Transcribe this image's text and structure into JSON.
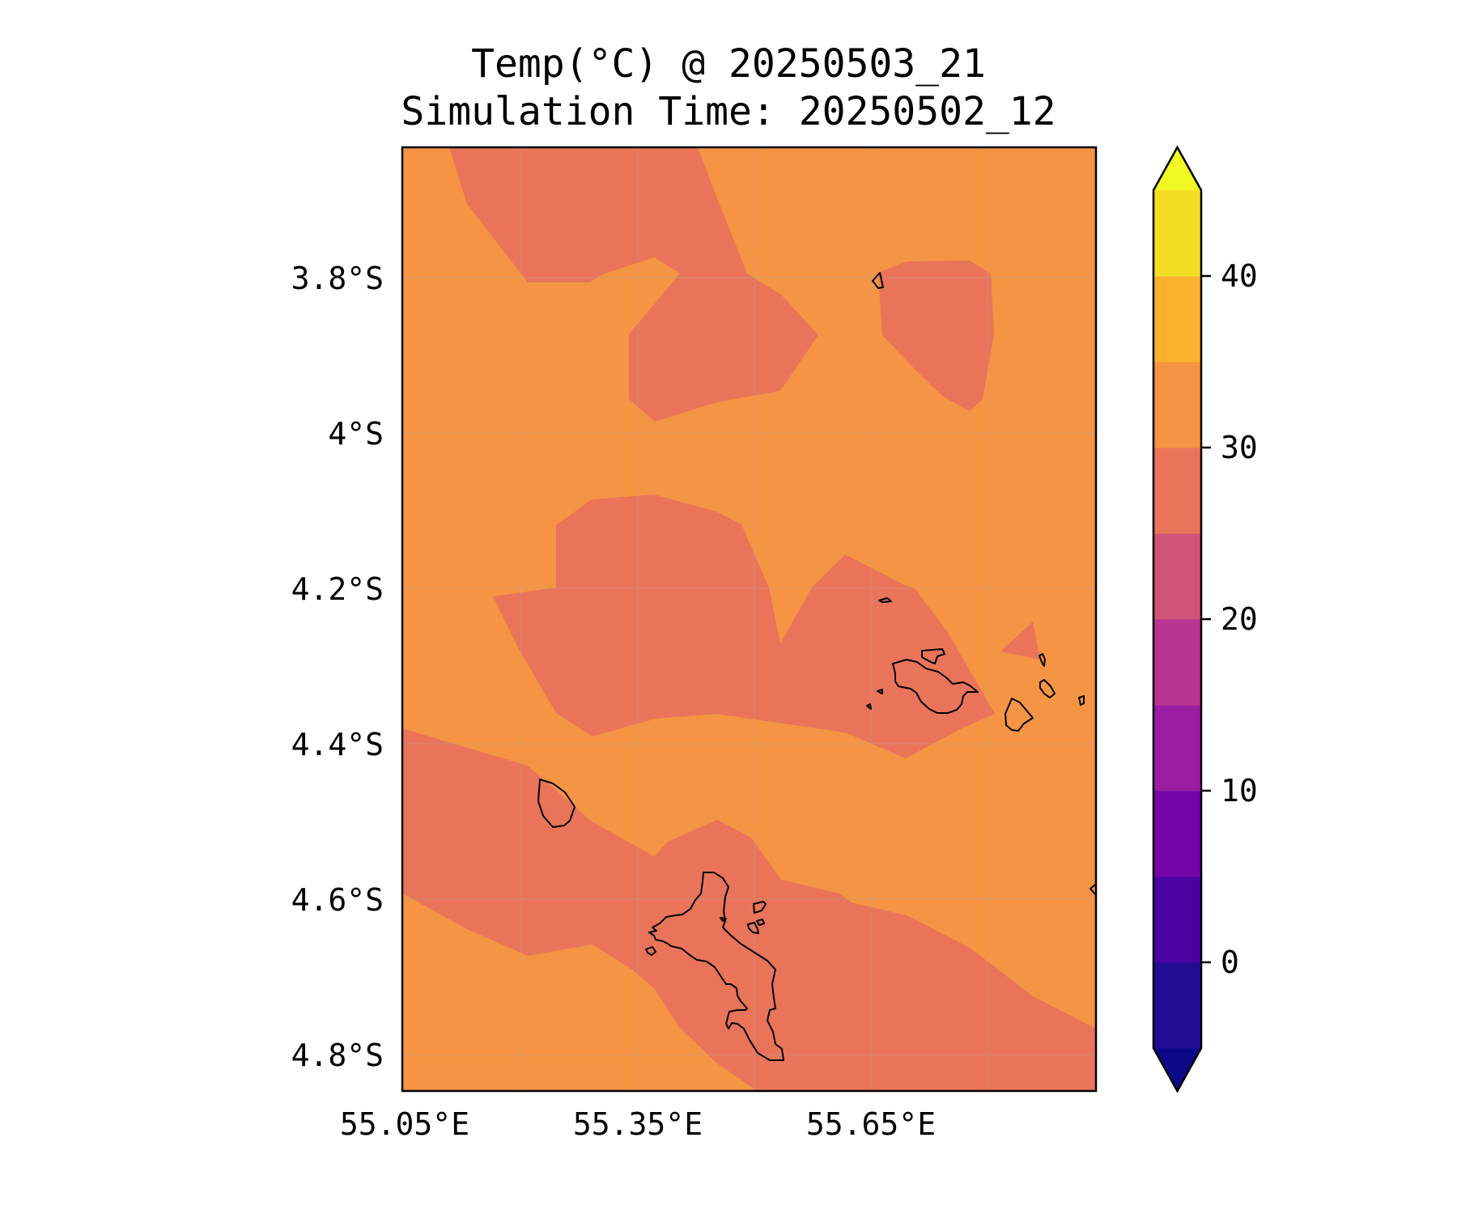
{
  "title": {
    "line1": "Temp(°C) @ 20250503_21",
    "line2": "Simulation Time: 20250502_12"
  },
  "map": {
    "lat_ticks": [
      "3.8°S",
      "4°S",
      "4.2°S",
      "4.4°S",
      "4.6°S",
      "4.8°S"
    ],
    "lon_ticks": [
      "55.05°E",
      "55.35°E",
      "55.65°E"
    ],
    "colors": {
      "background_band": "#F59443",
      "cooler_band": "#E9745A",
      "coastline": "#000000"
    }
  },
  "colorbar": {
    "ticks": [
      "0",
      "10",
      "20",
      "30",
      "40"
    ],
    "levels": [
      -5,
      0,
      5,
      10,
      15,
      20,
      25,
      30,
      35,
      40,
      45
    ],
    "colors": [
      "#200D91",
      "#4A03A0",
      "#7304A7",
      "#9A1DA2",
      "#B93591",
      "#D15377",
      "#E9745A",
      "#F59443",
      "#FDB22E",
      "#F4DE25"
    ],
    "under_color": "#0D0887",
    "over_color": "#F0F921"
  }
}
